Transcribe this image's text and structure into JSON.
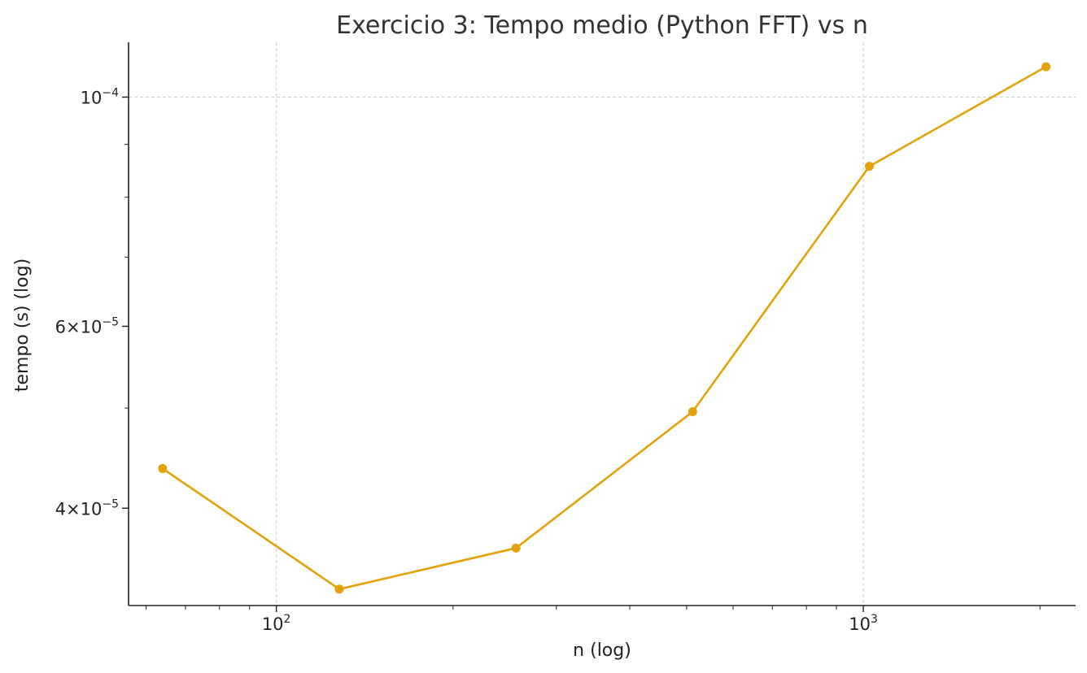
{
  "chart_data": {
    "type": "line",
    "title": "Exercicio 3: Tempo medio (Python FFT) vs n",
    "xlabel": "n (log)",
    "ylabel": "tempo (s) (log)",
    "xscale": "log",
    "yscale": "log",
    "xlim": [
      56,
      2300
    ],
    "ylim": [
      3.22e-05,
      0.000113
    ],
    "grid": true,
    "x_ticks": [
      {
        "value": 100,
        "base": "10",
        "exp": "2"
      },
      {
        "value": 1000,
        "base": "10",
        "exp": "3"
      }
    ],
    "y_ticks": [
      {
        "value": 4e-05,
        "mant": "4",
        "exp": "−5"
      },
      {
        "value": 6e-05,
        "mant": "6",
        "exp": "−5"
      },
      {
        "value": 0.0001,
        "mant": "",
        "exp": "−4"
      }
    ],
    "color": "#E3A10A",
    "series": [
      {
        "x": [
          64,
          128,
          256,
          512,
          1024,
          2048
        ],
        "y": [
          4.37e-05,
          3.34e-05,
          3.66e-05,
          4.96e-05,
          8.57e-05,
          0.000107
        ]
      }
    ]
  }
}
